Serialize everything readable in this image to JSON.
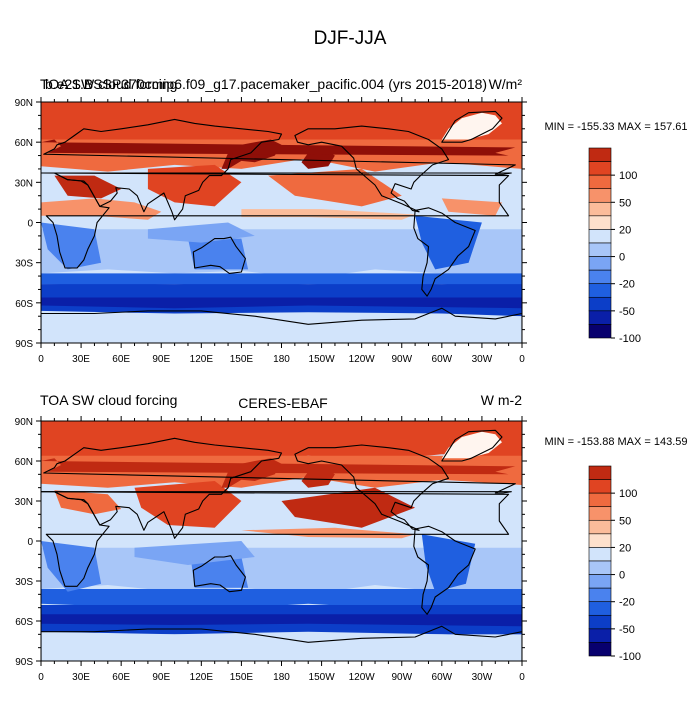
{
  "figure": {
    "title": "DJF-JJA"
  },
  "chart_data": [
    {
      "type": "heatmap",
      "title_left": "TOA SW cloud forcing",
      "title_overlap": "b.e21.BSSP370cmip6.f09_g17.pacemaker_pacific.004 (yrs 2015-2018)",
      "title_right": "W/m²",
      "stats_label": "MIN = -155.33 MAX = 157.61",
      "min": -155.33,
      "max": 157.61,
      "xlim": [
        0,
        360
      ],
      "ylim": [
        -90,
        90
      ],
      "x_ticks": [
        "0",
        "30E",
        "60E",
        "90E",
        "120E",
        "150E",
        "180",
        "150W",
        "120W",
        "90W",
        "60W",
        "30W",
        "0"
      ],
      "y_ticks": [
        "90N",
        "60N",
        "30N",
        "0",
        "30S",
        "60S",
        "90S"
      ],
      "colorbar": {
        "levels": [
          -120,
          -100,
          -70,
          -50,
          -35,
          -20,
          -10,
          0,
          10,
          20,
          35,
          50,
          70,
          100,
          120
        ],
        "labels": [
          "-100",
          "-50",
          "-20",
          "0",
          "20",
          "50",
          "100"
        ]
      }
    },
    {
      "type": "heatmap",
      "title_left": "TOA SW cloud forcing",
      "title_center": "CERES-EBAF",
      "title_right": "W m-2",
      "stats_label": "MIN = -153.88 MAX = 143.59",
      "min": -153.88,
      "max": 143.59,
      "xlim": [
        0,
        360
      ],
      "ylim": [
        -90,
        90
      ],
      "x_ticks": [
        "0",
        "30E",
        "60E",
        "90E",
        "120E",
        "150E",
        "180",
        "150W",
        "120W",
        "90W",
        "60W",
        "30W",
        "0"
      ],
      "y_ticks": [
        "90N",
        "60N",
        "30N",
        "0",
        "30S",
        "60S",
        "90S"
      ],
      "colorbar": {
        "levels": [
          -120,
          -100,
          -70,
          -50,
          -35,
          -20,
          -10,
          0,
          10,
          20,
          35,
          50,
          70,
          100,
          120
        ],
        "labels": [
          "-100",
          "-50",
          "-20",
          "0",
          "20",
          "50",
          "100"
        ]
      }
    }
  ],
  "palette": [
    "#08006e",
    "#0a1fa8",
    "#0c3ec8",
    "#1f5fe0",
    "#4a82ee",
    "#7aa5f4",
    "#a8c6f8",
    "#d2e4fb",
    "#fde0cc",
    "#fbbc9a",
    "#f7926a",
    "#ef6a3f",
    "#e04422",
    "#c02a12",
    "#8f0f08"
  ]
}
